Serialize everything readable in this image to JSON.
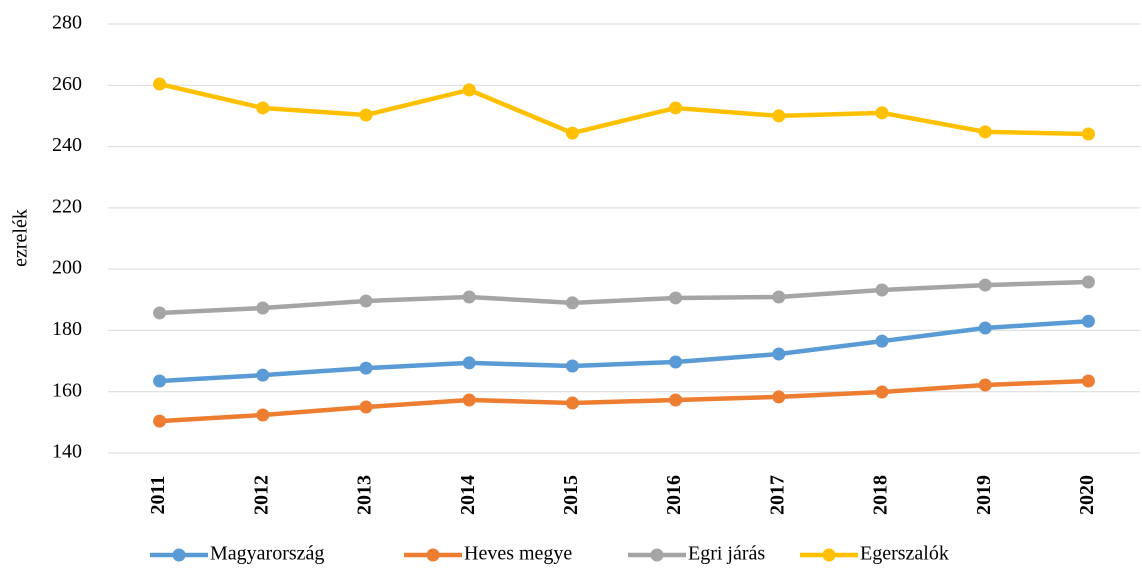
{
  "chart_data": {
    "type": "line",
    "y_label": "ezrelék",
    "categories": [
      "2011",
      "2012",
      "2013",
      "2014",
      "2015",
      "2016",
      "2017",
      "2018",
      "2019",
      "2020"
    ],
    "series": [
      {
        "name": "Magyarország",
        "color": "#5b9bd5",
        "values": [
          163.5,
          165.4,
          167.7,
          169.4,
          168.4,
          169.7,
          172.3,
          176.5,
          180.8,
          183
        ]
      },
      {
        "name": "Heves megye",
        "color": "#ed7d31",
        "values": [
          150.4,
          152.4,
          155,
          157.3,
          156.3,
          157.3,
          158.3,
          159.9,
          162.2,
          163.5
        ]
      },
      {
        "name": "Egri járás",
        "color": "#a5a5a5",
        "values": [
          185.7,
          187.3,
          189.6,
          190.9,
          189,
          190.6,
          190.9,
          193.2,
          194.8,
          195.8
        ]
      },
      {
        "name": "Egerszalók",
        "color": "#ffc000",
        "values": [
          260.4,
          252.6,
          250.3,
          258.5,
          244.4,
          252.6,
          250,
          251,
          244.8,
          244.1
        ]
      }
    ],
    "ylim": [
      140,
      280
    ],
    "yticks": [
      140,
      160,
      180,
      200,
      220,
      240,
      260,
      280
    ],
    "grid": true,
    "legend": "bottom"
  }
}
